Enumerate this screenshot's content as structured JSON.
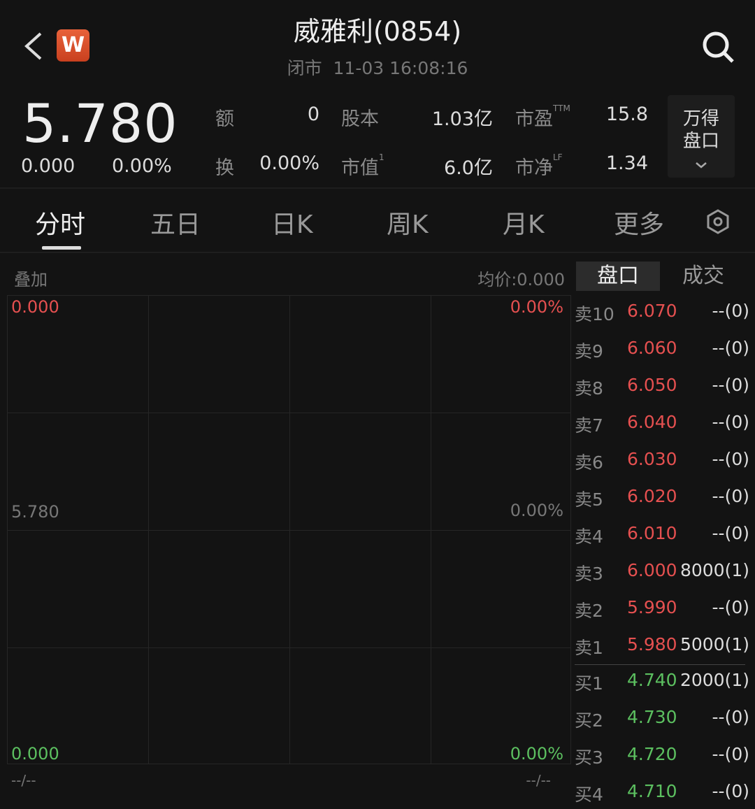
{
  "header": {
    "title": "威雅利(0854)",
    "status": "闭市",
    "datetime": "11-03 16:08:16",
    "logo_letter": "W"
  },
  "quote": {
    "price": "5.780",
    "change": "0.000",
    "change_pct": "0.00%",
    "stats": [
      {
        "label": "额",
        "value": "0"
      },
      {
        "label": "股本",
        "value": "1.03亿"
      },
      {
        "label": "市盈",
        "sup": "TTM",
        "value": "15.8"
      },
      {
        "label": "换",
        "value": "0.00%"
      },
      {
        "label": "市值",
        "sup": "1",
        "value": "6.0亿"
      },
      {
        "label": "市净",
        "sup": "LF",
        "value": "1.34"
      }
    ],
    "wind_button": [
      "万得",
      "盘口"
    ]
  },
  "tabs": [
    "分时",
    "五日",
    "日K",
    "周K",
    "月K",
    "更多"
  ],
  "chart": {
    "overlay_label": "叠加",
    "avg_price": "均价:0.000",
    "top_left": "0.000",
    "top_right": "0.00%",
    "mid_left": "5.780",
    "mid_right": "0.00%",
    "bottom_left": "0.000",
    "bottom_right": "0.00%",
    "time_left": "--/--",
    "time_right": "--/--"
  },
  "panel_tabs": [
    "盘口",
    "成交"
  ],
  "orderbook": {
    "asks": [
      [
        "卖10",
        "6.070",
        "--(0)"
      ],
      [
        "卖9",
        "6.060",
        "--(0)"
      ],
      [
        "卖8",
        "6.050",
        "--(0)"
      ],
      [
        "卖7",
        "6.040",
        "--(0)"
      ],
      [
        "卖6",
        "6.030",
        "--(0)"
      ],
      [
        "卖5",
        "6.020",
        "--(0)"
      ],
      [
        "卖4",
        "6.010",
        "--(0)"
      ],
      [
        "卖3",
        "6.000",
        "8000(1)"
      ],
      [
        "卖2",
        "5.990",
        "--(0)"
      ],
      [
        "卖1",
        "5.980",
        "5000(1)"
      ]
    ],
    "bids": [
      [
        "买1",
        "4.740",
        "2000(1)"
      ],
      [
        "买2",
        "4.730",
        "--(0)"
      ],
      [
        "买3",
        "4.720",
        "--(0)"
      ],
      [
        "买4",
        "4.710",
        "--(0)"
      ]
    ]
  },
  "colors": {
    "up": "#e55050",
    "down": "#5cc060",
    "background": "#131313"
  }
}
